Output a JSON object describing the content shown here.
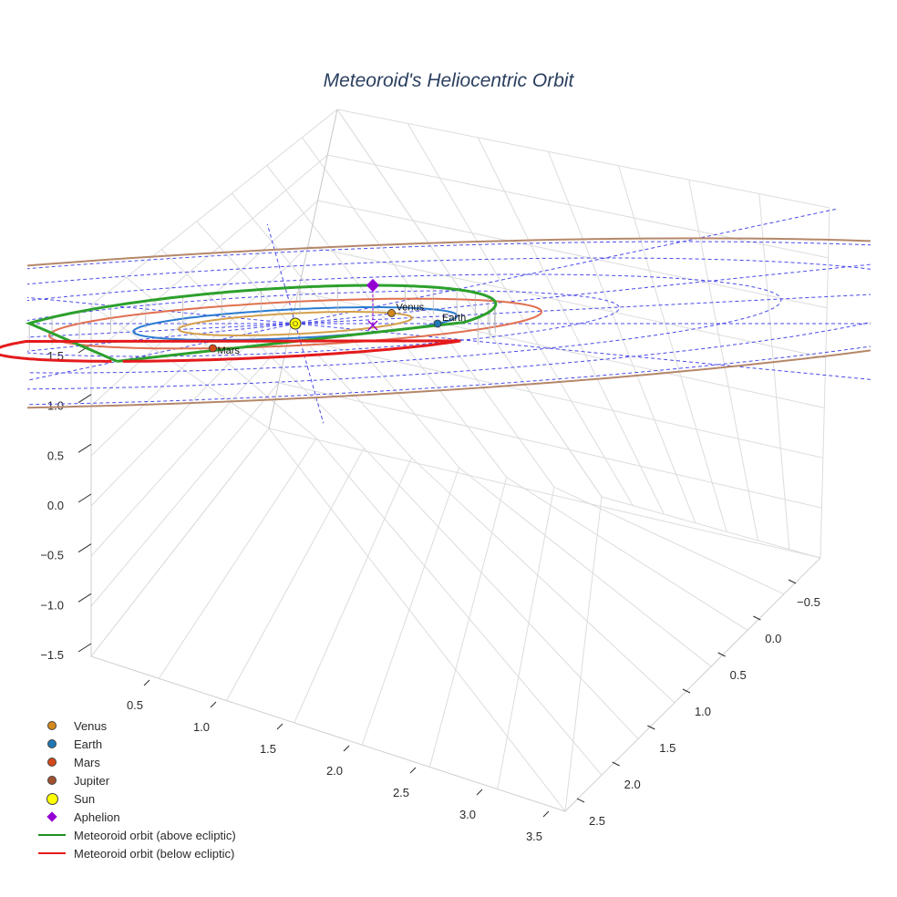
{
  "chart_data": {
    "type": "scatter3d",
    "title": "Meteoroid's Heliocentric Orbit",
    "axes": {
      "x": {
        "ticks": [
          "0.5",
          "1.0",
          "1.5",
          "2.0",
          "2.5",
          "3.0",
          "3.5"
        ],
        "range": [
          0.25,
          3.6
        ]
      },
      "y": {
        "ticks": [
          "−0.5",
          "0.0",
          "0.5",
          "1.0",
          "1.5",
          "2.0",
          "2.5"
        ],
        "range": [
          -0.75,
          2.65
        ]
      },
      "z": {
        "ticks": [
          "−1.5",
          "−1.0",
          "−0.5",
          "0.0",
          "0.5",
          "1.0",
          "1.5"
        ],
        "range": [
          -1.75,
          1.75
        ]
      }
    },
    "orbit": {
      "perihelion_au": 1.0,
      "aphelion_au": 2.3,
      "aphelion_height": 0.08,
      "below_ecliptic_color": "#e41a1c",
      "above_ecliptic_color": "#2ca02c"
    },
    "planets": [
      {
        "name": "Venus",
        "color": "#d4881e",
        "orbit_color": "#d4a04a",
        "radius_au": 0.72
      },
      {
        "name": "Earth",
        "color": "#1f77b4",
        "orbit_color": "#2b7bd0",
        "radius_au": 1.0
      },
      {
        "name": "Mars",
        "color": "#d2491a",
        "orbit_color": "#e07050",
        "radius_au": 1.52
      },
      {
        "name": "Jupiter",
        "color": "#a0522d",
        "orbit_color": "#b5876a",
        "radius_au": 5.2
      }
    ],
    "sun": {
      "name": "Sun",
      "color": "#ffff00"
    },
    "aphelion": {
      "name": "Aphelion",
      "color": "#9400d3"
    },
    "ecliptic_grid_color": "#4a4ae8"
  },
  "legend": [
    {
      "label": "Venus",
      "symbol": "dot",
      "color": "#d4881e"
    },
    {
      "label": "Earth",
      "symbol": "dot",
      "color": "#1f77b4"
    },
    {
      "label": "Mars",
      "symbol": "dot",
      "color": "#d2491a"
    },
    {
      "label": "Jupiter",
      "symbol": "dot",
      "color": "#a0522d"
    },
    {
      "label": "Sun",
      "symbol": "sun",
      "color": "#ffff00"
    },
    {
      "label": "Aphelion",
      "symbol": "diamond",
      "color": "#9400d3"
    },
    {
      "label": "Meteoroid orbit (above ecliptic)",
      "symbol": "line",
      "color": "#1f8f1f"
    },
    {
      "label": "Meteoroid orbit (below ecliptic)",
      "symbol": "line",
      "color": "#e41a1c"
    }
  ]
}
